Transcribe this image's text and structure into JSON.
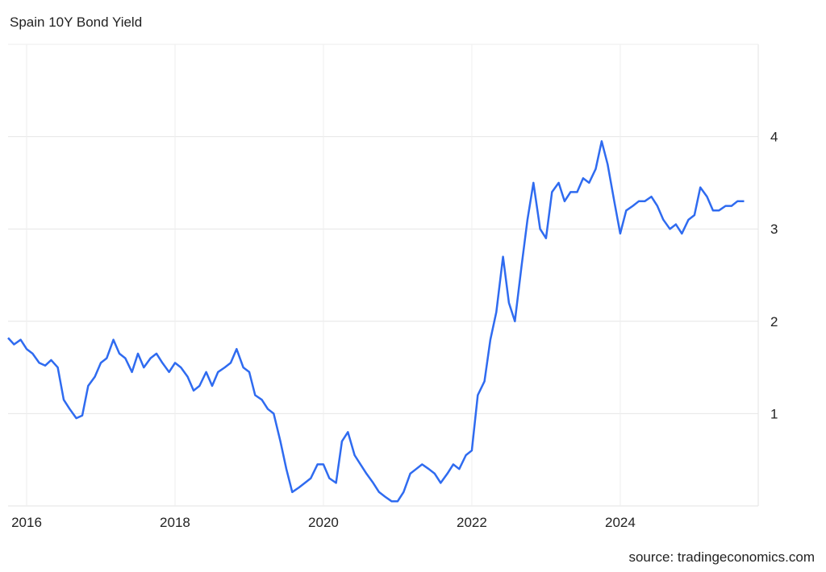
{
  "chart_data": {
    "type": "line",
    "title": "Spain 10Y Bond Yield",
    "source": "source: tradingeconomics.com",
    "x": [
      2015.75,
      2015.83,
      2015.92,
      2016.0,
      2016.08,
      2016.17,
      2016.25,
      2016.33,
      2016.42,
      2016.5,
      2016.58,
      2016.67,
      2016.75,
      2016.83,
      2016.92,
      2017.0,
      2017.08,
      2017.17,
      2017.25,
      2017.33,
      2017.42,
      2017.5,
      2017.58,
      2017.67,
      2017.75,
      2017.83,
      2017.92,
      2018.0,
      2018.08,
      2018.17,
      2018.25,
      2018.33,
      2018.42,
      2018.5,
      2018.58,
      2018.67,
      2018.75,
      2018.83,
      2018.92,
      2019.0,
      2019.08,
      2019.17,
      2019.25,
      2019.33,
      2019.42,
      2019.5,
      2019.58,
      2019.67,
      2019.75,
      2019.83,
      2019.92,
      2020.0,
      2020.08,
      2020.17,
      2020.25,
      2020.33,
      2020.42,
      2020.5,
      2020.58,
      2020.67,
      2020.75,
      2020.83,
      2020.92,
      2021.0,
      2021.08,
      2021.17,
      2021.25,
      2021.33,
      2021.42,
      2021.5,
      2021.58,
      2021.67,
      2021.75,
      2021.83,
      2021.92,
      2022.0,
      2022.08,
      2022.17,
      2022.25,
      2022.33,
      2022.42,
      2022.5,
      2022.58,
      2022.67,
      2022.75,
      2022.83,
      2022.92,
      2023.0,
      2023.08,
      2023.17,
      2023.25,
      2023.33,
      2023.42,
      2023.5,
      2023.58,
      2023.67,
      2023.75,
      2023.83,
      2023.92,
      2024.0,
      2024.08,
      2024.17,
      2024.25,
      2024.33,
      2024.42,
      2024.5,
      2024.58,
      2024.67,
      2024.75,
      2024.83,
      2024.92,
      2025.0,
      2025.08,
      2025.17,
      2025.25,
      2025.33,
      2025.42,
      2025.5,
      2025.58,
      2025.67
    ],
    "series": [
      {
        "name": "Spain 10Y",
        "color": "#2f6bf0",
        "values": [
          1.82,
          1.75,
          1.8,
          1.7,
          1.65,
          1.55,
          1.52,
          1.58,
          1.5,
          1.15,
          1.05,
          0.95,
          0.98,
          1.3,
          1.4,
          1.55,
          1.6,
          1.8,
          1.65,
          1.6,
          1.45,
          1.65,
          1.5,
          1.6,
          1.65,
          1.55,
          1.45,
          1.55,
          1.5,
          1.4,
          1.25,
          1.3,
          1.45,
          1.3,
          1.45,
          1.5,
          1.55,
          1.7,
          1.5,
          1.45,
          1.2,
          1.15,
          1.05,
          1.0,
          0.7,
          0.4,
          0.15,
          0.2,
          0.25,
          0.3,
          0.45,
          0.45,
          0.3,
          0.25,
          0.7,
          0.8,
          0.55,
          0.45,
          0.35,
          0.25,
          0.15,
          0.1,
          0.05,
          0.05,
          0.15,
          0.35,
          0.4,
          0.45,
          0.4,
          0.35,
          0.25,
          0.35,
          0.45,
          0.4,
          0.55,
          0.6,
          1.2,
          1.35,
          1.8,
          2.1,
          2.7,
          2.2,
          2.0,
          2.6,
          3.1,
          3.5,
          3.0,
          2.9,
          3.4,
          3.5,
          3.3,
          3.4,
          3.4,
          3.55,
          3.5,
          3.65,
          3.95,
          3.7,
          3.3,
          2.95,
          3.2,
          3.25,
          3.3,
          3.3,
          3.35,
          3.25,
          3.1,
          3.0,
          3.05,
          2.95,
          3.1,
          3.15,
          3.45,
          3.35,
          3.2,
          3.2,
          3.25,
          3.25,
          3.3,
          3.3
        ]
      }
    ],
    "xlim": [
      2015.75,
      2025.86
    ],
    "xticks": [
      2016,
      2018,
      2020,
      2022,
      2024
    ],
    "ylim": [
      0,
      5
    ],
    "yticks": [
      1,
      2,
      3,
      4
    ],
    "grid": true
  }
}
